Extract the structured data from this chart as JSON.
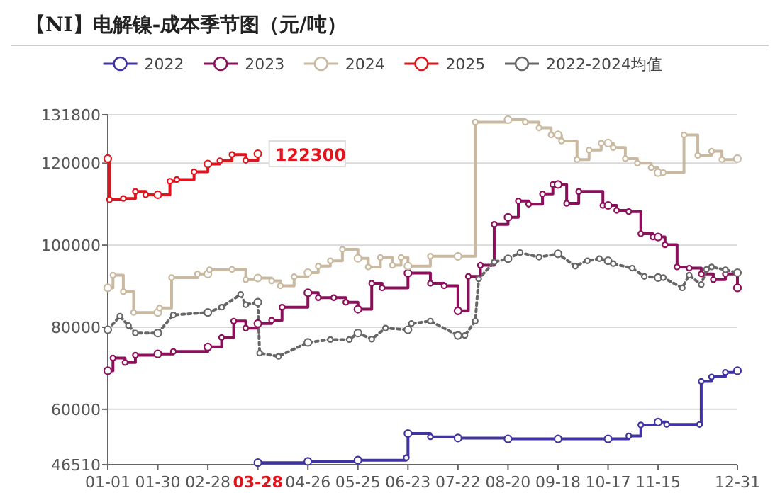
{
  "chart_data": {
    "type": "step",
    "title": "【NI】电解镍-成本季节图（元/吨）",
    "xlim": [
      "--01-01",
      "--12-31"
    ],
    "xticks": [
      {
        "value": "--01-01",
        "label": "01-01"
      },
      {
        "value": "--01-30",
        "label": "01-30"
      },
      {
        "value": "--02-28",
        "label": "02-28"
      },
      {
        "value": "--03-28",
        "label": "03-28"
      },
      {
        "value": "--04-26",
        "label": "04-26"
      },
      {
        "value": "--05-25",
        "label": "05-25"
      },
      {
        "value": "--06-23",
        "label": "06-23"
      },
      {
        "value": "--07-22",
        "label": "07-22"
      },
      {
        "value": "--08-20",
        "label": "08-20"
      },
      {
        "value": "--09-18",
        "label": "09-18"
      },
      {
        "value": "--10-17",
        "label": "10-17"
      },
      {
        "value": "--11-15",
        "label": "11-15"
      },
      {
        "value": "--12-31",
        "label": "12-31"
      }
    ],
    "ylim": [
      46510,
      131800
    ],
    "yticks": [
      46510,
      60000,
      80000,
      100000,
      120000,
      131800
    ],
    "grid": "y",
    "legend": "top",
    "marker": "circle",
    "line_style": "solid",
    "annotations": [
      {
        "text": "122300",
        "x": "--03-28",
        "y": 122300
      }
    ],
    "series": [
      {
        "name": "2022",
        "color": "#3f34a0",
        "x": [
          "--03-28",
          "--04-26",
          "--05-25",
          "--06-22",
          "--06-23",
          "--07-06",
          "--07-22",
          "--08-20",
          "--09-18",
          "--10-17",
          "--10-29",
          "--11-05",
          "--11-15",
          "--11-20",
          "--12-09",
          "--12-10",
          "--12-16",
          "--12-24",
          "--12-31"
        ],
        "values": [
          47000,
          47300,
          47600,
          48200,
          54100,
          53300,
          53000,
          52800,
          52800,
          52800,
          53500,
          56200,
          56900,
          56300,
          56300,
          66800,
          67900,
          69000,
          69400
        ]
      },
      {
        "name": "2023",
        "color": "#8b0f5a",
        "x": [
          "--01-01",
          "--01-04",
          "--01-11",
          "--01-17",
          "--01-30",
          "--02-08",
          "--02-28",
          "--03-07",
          "--03-14",
          "--03-21",
          "--03-28",
          "--04-05",
          "--04-11",
          "--04-26",
          "--05-02",
          "--05-11",
          "--05-18",
          "--05-25",
          "--06-02",
          "--06-08",
          "--06-23",
          "--07-06",
          "--07-14",
          "--07-22",
          "--07-28",
          "--08-04",
          "--08-12",
          "--08-20",
          "--08-26",
          "--09-01",
          "--09-09",
          "--09-15",
          "--09-18",
          "--09-23",
          "--09-30",
          "--10-14",
          "--10-17",
          "--10-22",
          "--10-29",
          "--11-05",
          "--11-12",
          "--11-15",
          "--11-19",
          "--11-26",
          "--12-03",
          "--12-10",
          "--12-17",
          "--12-24",
          "--12-31"
        ],
        "values": [
          69400,
          72500,
          71400,
          73200,
          73500,
          74100,
          75200,
          77500,
          81500,
          79800,
          80900,
          81700,
          84900,
          88400,
          87200,
          87200,
          86100,
          84400,
          90700,
          89600,
          93200,
          90700,
          90100,
          84000,
          92400,
          95100,
          105100,
          106800,
          110800,
          110000,
          112500,
          114800,
          114800,
          110200,
          113100,
          109700,
          109700,
          108500,
          108200,
          102800,
          102000,
          102000,
          100100,
          94700,
          94400,
          93000,
          91600,
          93000,
          89600
        ]
      },
      {
        "name": "2024",
        "color": "#c9b9a0",
        "x": [
          "--01-01",
          "--01-04",
          "--01-10",
          "--01-16",
          "--01-30",
          "--01-31",
          "--02-07",
          "--02-22",
          "--02-28",
          "--02-29",
          "--03-13",
          "--03-21",
          "--03-28",
          "--04-05",
          "--04-10",
          "--04-18",
          "--04-26",
          "--05-02",
          "--05-09",
          "--05-16",
          "--05-25",
          "--05-31",
          "--06-07",
          "--06-14",
          "--06-19",
          "--06-23",
          "--07-06",
          "--07-22",
          "--08-01",
          "--08-20",
          "--08-30",
          "--09-07",
          "--09-14",
          "--09-18",
          "--09-20",
          "--09-29",
          "--10-06",
          "--10-13",
          "--10-17",
          "--10-20",
          "--10-27",
          "--11-03",
          "--11-11",
          "--11-15",
          "--11-18",
          "--11-30",
          "--12-08",
          "--12-16",
          "--12-22",
          "--12-31"
        ],
        "values": [
          89600,
          92700,
          88700,
          83600,
          83600,
          84700,
          92100,
          93000,
          93000,
          94000,
          94100,
          91600,
          92000,
          91300,
          90100,
          92300,
          93300,
          94900,
          96200,
          99000,
          96800,
          94700,
          97000,
          95100,
          97000,
          94900,
          97300,
          97300,
          130000,
          130600,
          130000,
          128600,
          126900,
          126900,
          125400,
          120900,
          123200,
          124900,
          124900,
          123800,
          121100,
          120000,
          118900,
          117700,
          117700,
          126900,
          121900,
          122900,
          120900,
          121100
        ]
      },
      {
        "name": "2025",
        "color": "#e0141c",
        "x": [
          "--01-01",
          "--01-02",
          "--01-10",
          "--01-17",
          "--01-23",
          "--01-30",
          "--02-06",
          "--02-10",
          "--02-20",
          "--02-28",
          "--03-06",
          "--03-13",
          "--03-21",
          "--03-28"
        ],
        "values": [
          121100,
          111100,
          111400,
          113100,
          112300,
          112300,
          115600,
          116000,
          117900,
          119800,
          120600,
          122100,
          120700,
          122300
        ]
      },
      {
        "name": "2022-2024均值",
        "color": "#666666",
        "type": "line",
        "line_style": "dotted",
        "x": [
          "--01-01",
          "--01-08",
          "--01-13",
          "--01-17",
          "--01-30",
          "--02-08",
          "--02-28",
          "--03-07",
          "--03-18",
          "--03-21",
          "--03-28",
          "--03-29",
          "--04-09",
          "--04-26",
          "--05-09",
          "--05-20",
          "--05-25",
          "--06-02",
          "--06-10",
          "--06-23",
          "--06-25",
          "--07-06",
          "--07-22",
          "--07-26",
          "--08-01",
          "--08-03",
          "--08-12",
          "--08-20",
          "--08-27",
          "--09-07",
          "--09-18",
          "--09-28",
          "--10-05",
          "--10-12",
          "--10-17",
          "--10-20",
          "--10-31",
          "--11-07",
          "--11-15",
          "--11-18",
          "--11-29",
          "--12-03",
          "--12-10",
          "--12-13",
          "--12-16",
          "--12-24",
          "--12-31"
        ],
        "values": [
          79400,
          82700,
          80400,
          78600,
          78600,
          83000,
          83600,
          84900,
          88000,
          85500,
          86100,
          73700,
          72900,
          76300,
          77000,
          77000,
          78600,
          77100,
          79800,
          79400,
          80900,
          81500,
          78000,
          78000,
          81500,
          91800,
          95900,
          96700,
          98200,
          97100,
          97900,
          94900,
          96200,
          96700,
          96200,
          95500,
          94400,
          92400,
          92100,
          92100,
          89600,
          92700,
          90400,
          94100,
          94700,
          94000,
          93300
        ]
      }
    ]
  }
}
